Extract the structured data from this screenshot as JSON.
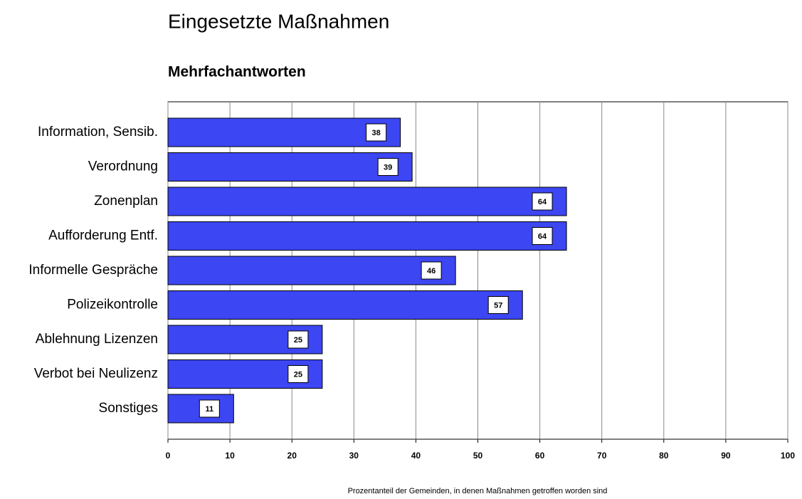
{
  "chart_data": {
    "type": "bar",
    "orientation": "horizontal",
    "title": "Eingesetzte Maßnahmen",
    "subtitle": "Mehrfachantworten",
    "x_label": "Prozentanteil der Gemeinden, in denen Maßnahmen getroffen worden sind",
    "categories": [
      "Information, Sensib.",
      "Verordnung",
      "Zonenplan",
      "Aufforderung Entf.",
      "Informelle Gespräche",
      "Polizeikontrolle",
      "Ablehnung Lizenzen",
      "Verbot bei Neulizenz",
      "Sonstiges"
    ],
    "values": [
      37.5,
      39.4,
      64.3,
      64.3,
      46.4,
      57.2,
      24.9,
      24.9,
      10.6
    ],
    "value_labels": [
      "38",
      "39",
      "64",
      "64",
      "46",
      "57",
      "25",
      "25",
      "11"
    ],
    "color": "#3c46f2",
    "xlim": [
      0,
      100
    ],
    "xticks": [
      0,
      10,
      20,
      30,
      40,
      50,
      60,
      70,
      80,
      90,
      100
    ],
    "grid": true
  }
}
